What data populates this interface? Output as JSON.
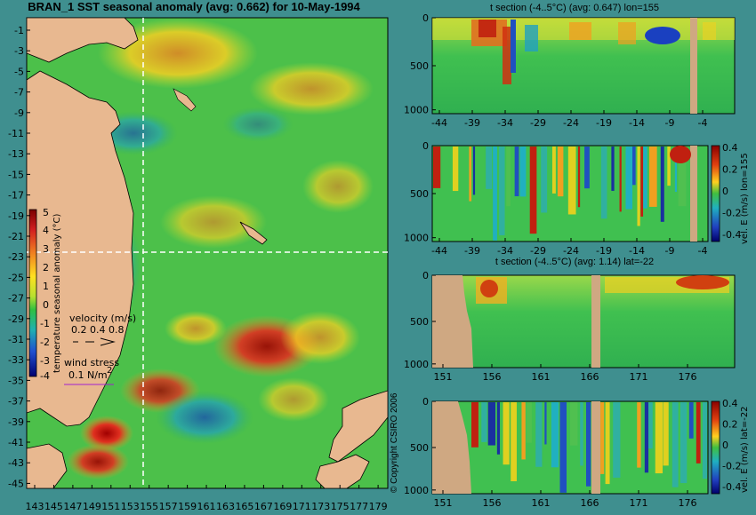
{
  "map": {
    "title": "BRAN_1 SST seasonal anomaly (avg: 0.662) for 10-May-1994",
    "lat_ticks": [
      "-1",
      "-3",
      "-5",
      "-7",
      "-9",
      "-11",
      "-13",
      "-15",
      "-17",
      "-19",
      "-21",
      "-23",
      "-25",
      "-27",
      "-29",
      "-31",
      "-33",
      "-35",
      "-37",
      "-39",
      "-41",
      "-43",
      "-45"
    ],
    "lon_ticks": [
      "143",
      "145",
      "147",
      "149",
      "151",
      "153",
      "155",
      "157",
      "159",
      "161",
      "163",
      "165",
      "167",
      "169",
      "171",
      "173",
      "175",
      "177",
      "179"
    ],
    "colorbar_label": "temperature seasonal anomaly (°C)",
    "colorbar_ticks": [
      "5",
      "4",
      "3",
      "2",
      "1",
      "0",
      "-1",
      "-2",
      "-3",
      "-4"
    ],
    "velocity_label": "velocity (m/s)",
    "velocity_values": "0.2 0.4 0.8",
    "wind_label": "wind stress",
    "wind_value": "0.1 N/m",
    "wind_sup": "2"
  },
  "copyright": "© Copyright CSIRO 2006",
  "panels": [
    {
      "title": "t section (-4..5°C) (avg: 0.647) lon=155",
      "y_ticks": [
        "0",
        "500",
        "1000"
      ],
      "x_ticks": [
        "-44",
        "-39",
        "-34",
        "-29",
        "-24",
        "-19",
        "-14",
        "-9",
        "-4"
      ]
    },
    {
      "title": "",
      "y_ticks": [
        "0",
        "500",
        "1000"
      ],
      "x_ticks": [
        "-44",
        "-39",
        "-34",
        "-29",
        "-24",
        "-19",
        "-14",
        "-9",
        "-4"
      ],
      "colorbar_label": "vel. E (m/s) lon=155",
      "colorbar_ticks": [
        "0.4",
        "0.2",
        "0",
        "-0.2",
        "-0.4"
      ]
    },
    {
      "title": "t section (-4..5°C) (avg: 1.14) lat=-22",
      "y_ticks": [
        "0",
        "500",
        "1000"
      ],
      "x_ticks": [
        "151",
        "156",
        "161",
        "166",
        "171",
        "176"
      ]
    },
    {
      "title": "",
      "y_ticks": [
        "0",
        "500",
        "1000"
      ],
      "x_ticks": [
        "151",
        "156",
        "161",
        "166",
        "171",
        "176"
      ],
      "colorbar_label": "vel. E (m/s) lat=-22",
      "colorbar_ticks": [
        "0.4",
        "0.2",
        "0",
        "-0.2",
        "-0.4"
      ]
    }
  ],
  "chart_data": [
    {
      "type": "heatmap",
      "title": "BRAN_1 SST seasonal anomaly (avg: 0.662) for 10-May-1994",
      "xlim": [
        142,
        180
      ],
      "ylim": [
        -45,
        0
      ],
      "colorbar_range": [
        -4,
        5
      ],
      "section_lines": {
        "lon": 155,
        "lat": -22
      }
    },
    {
      "type": "heatmap",
      "title": "t section (-4..5°C) (avg: 0.647) lon=155",
      "xlim": [
        -45,
        0
      ],
      "ylim": [
        1050,
        0
      ]
    },
    {
      "type": "heatmap",
      "title": "",
      "xlim": [
        -45,
        0
      ],
      "ylim": [
        1050,
        0
      ],
      "colorbar_range": [
        -0.4,
        0.4
      ]
    },
    {
      "type": "heatmap",
      "title": "t section (-4..5°C) (avg: 1.14) lat=-22",
      "xlim": [
        150,
        180
      ],
      "ylim": [
        1050,
        0
      ]
    },
    {
      "type": "heatmap",
      "title": "",
      "xlim": [
        150,
        180
      ],
      "ylim": [
        1050,
        0
      ],
      "colorbar_range": [
        -0.4,
        0.4
      ]
    }
  ]
}
